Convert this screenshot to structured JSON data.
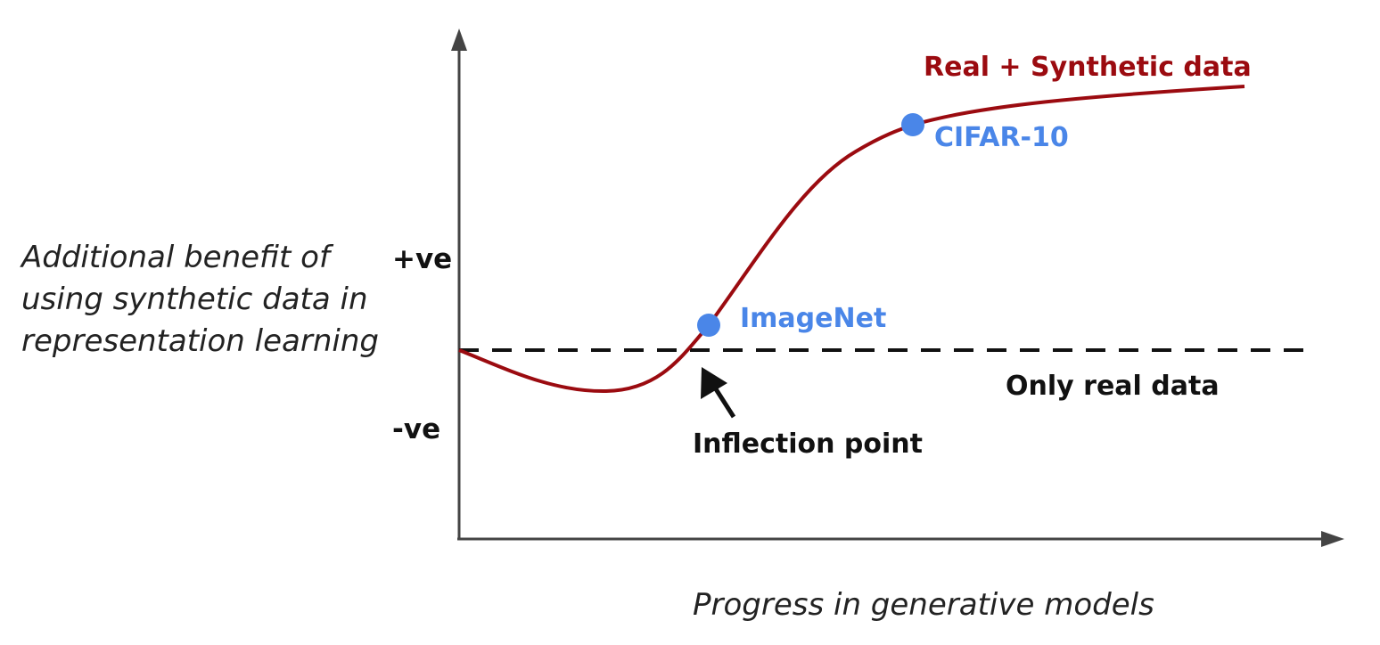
{
  "diagram": {
    "y_axis_label_lines": [
      "Additional benefit of",
      "using synthetic data in",
      "representation learning"
    ],
    "x_axis_label": "Progress in generative models",
    "tick_positive": "+ve",
    "tick_negative": "-ve",
    "baseline_label": "Only real data",
    "curve_label": "Real + Synthetic data",
    "inflection_label": "Inflection point",
    "points": [
      {
        "label": "ImageNet"
      },
      {
        "label": "CIFAR-10"
      }
    ],
    "colors": {
      "curve": "#9b0b10",
      "point": "#4a86e8",
      "axis": "#444444",
      "text": "#111111"
    }
  }
}
